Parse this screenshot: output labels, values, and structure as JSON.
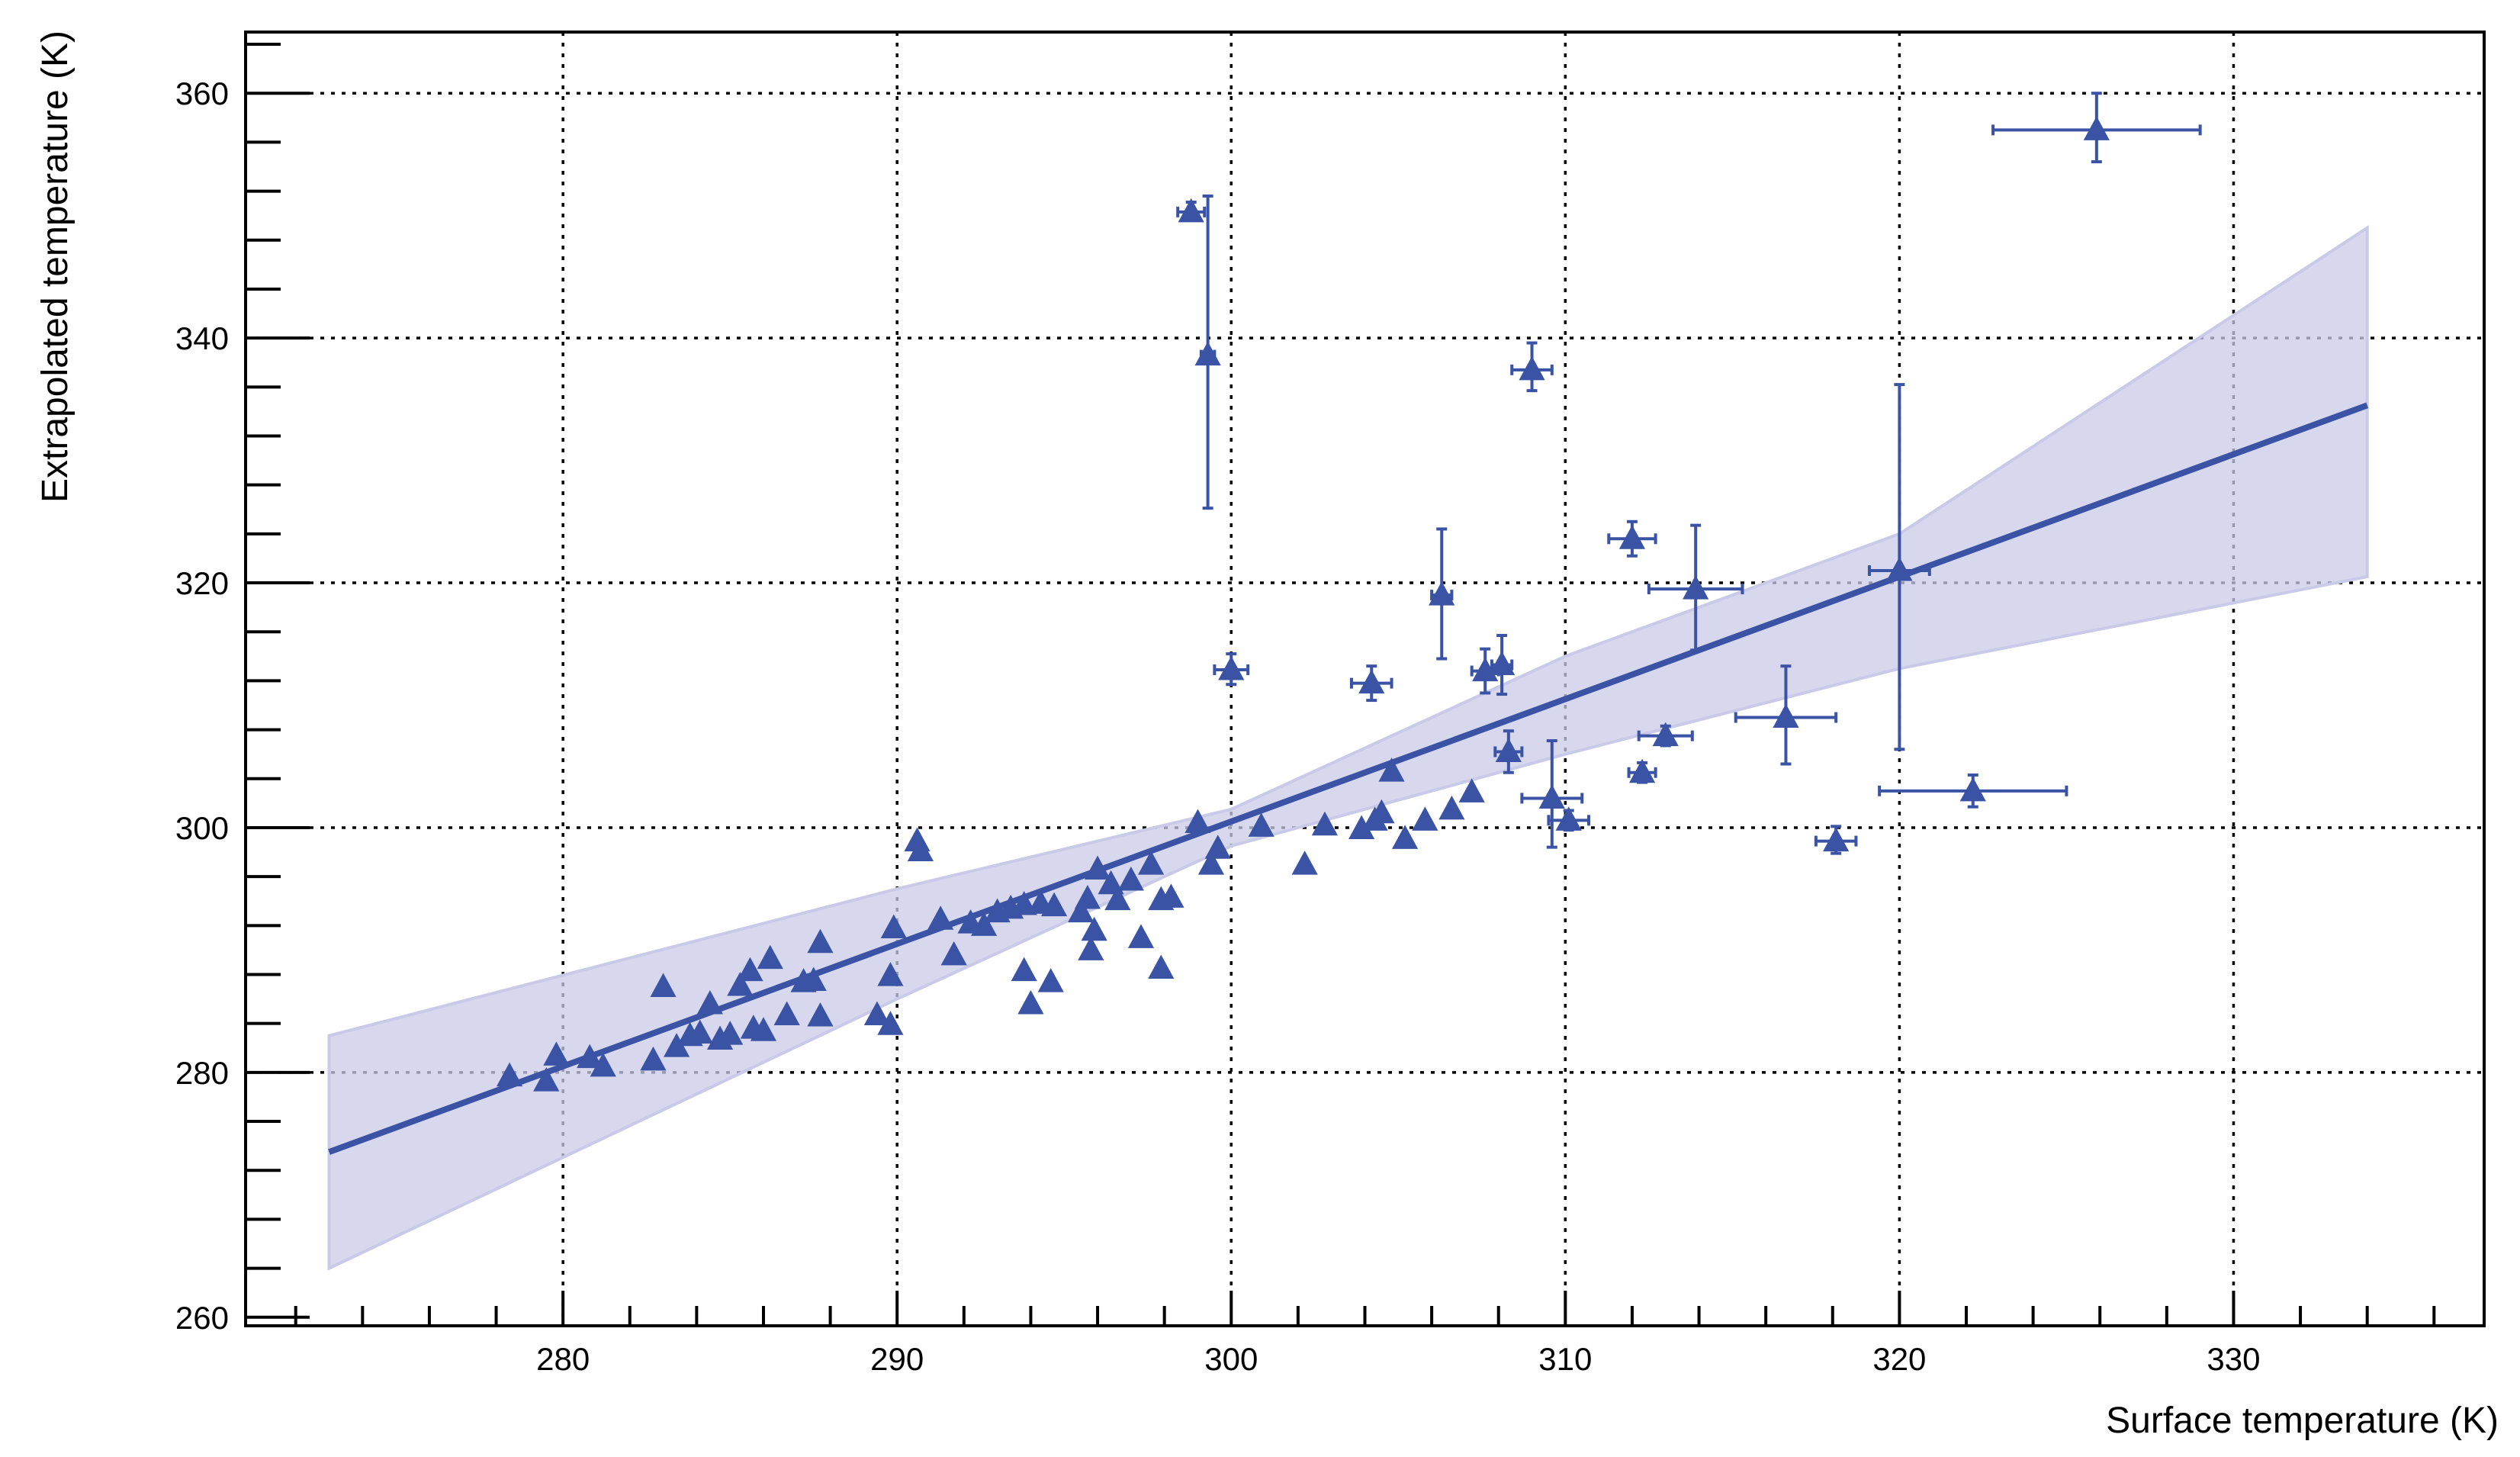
{
  "chart_data": {
    "type": "scatter",
    "xlabel": "Surface temperature (K)",
    "ylabel": "Extrapolated temperature (K)",
    "xlim": [
      270.5,
      337.5
    ],
    "ylim": [
      259.3,
      365
    ],
    "xticks": [
      280,
      290,
      300,
      310,
      320,
      330
    ],
    "yticks": [
      260,
      280,
      300,
      320,
      340,
      360
    ],
    "grid": true,
    "colors": {
      "marker": "#3a53a4",
      "fit_line": "#3a53a4",
      "band": "#c9c9e8"
    },
    "fit": {
      "x": [
        273.0,
        334.0
      ],
      "y": [
        273.5,
        334.5
      ]
    },
    "confidence_band": {
      "x": [
        273.0,
        290.0,
        300.0,
        310.0,
        320.0,
        334.0
      ],
      "lower": [
        264.0,
        286.0,
        298.5,
        306.0,
        313.0,
        320.5
      ],
      "upper": [
        283.0,
        295.0,
        301.5,
        314.0,
        324.0,
        349.0
      ]
    },
    "points": [
      {
        "x": 278.4,
        "y": 279.7
      },
      {
        "x": 279.5,
        "y": 279.3
      },
      {
        "x": 279.8,
        "y": 281.4
      },
      {
        "x": 280.8,
        "y": 281.2
      },
      {
        "x": 281.2,
        "y": 280.5
      },
      {
        "x": 282.7,
        "y": 281.0
      },
      {
        "x": 283.0,
        "y": 287.0
      },
      {
        "x": 283.4,
        "y": 282.1
      },
      {
        "x": 283.8,
        "y": 283.0
      },
      {
        "x": 284.1,
        "y": 283.2
      },
      {
        "x": 284.4,
        "y": 285.6
      },
      {
        "x": 284.7,
        "y": 282.7
      },
      {
        "x": 285.0,
        "y": 283.1
      },
      {
        "x": 285.3,
        "y": 287.1
      },
      {
        "x": 285.6,
        "y": 288.3
      },
      {
        "x": 285.7,
        "y": 283.6
      },
      {
        "x": 286.0,
        "y": 283.4
      },
      {
        "x": 286.2,
        "y": 289.3
      },
      {
        "x": 286.7,
        "y": 284.7
      },
      {
        "x": 287.2,
        "y": 287.4
      },
      {
        "x": 287.5,
        "y": 287.5
      },
      {
        "x": 287.7,
        "y": 284.6
      },
      {
        "x": 287.7,
        "y": 290.6
      },
      {
        "x": 289.4,
        "y": 284.7
      },
      {
        "x": 289.8,
        "y": 287.9
      },
      {
        "x": 289.8,
        "y": 283.9
      },
      {
        "x": 289.9,
        "y": 291.8
      },
      {
        "x": 290.6,
        "y": 298.9
      },
      {
        "x": 290.7,
        "y": 298.1
      },
      {
        "x": 291.3,
        "y": 292.5
      },
      {
        "x": 291.7,
        "y": 289.6
      },
      {
        "x": 292.2,
        "y": 292.2
      },
      {
        "x": 292.6,
        "y": 292.0
      },
      {
        "x": 293.0,
        "y": 293.1
      },
      {
        "x": 293.4,
        "y": 293.4
      },
      {
        "x": 293.8,
        "y": 288.3
      },
      {
        "x": 293.8,
        "y": 293.7
      },
      {
        "x": 294.0,
        "y": 285.6
      },
      {
        "x": 294.3,
        "y": 293.8
      },
      {
        "x": 294.6,
        "y": 287.4
      },
      {
        "x": 294.7,
        "y": 293.6
      },
      {
        "x": 295.5,
        "y": 293.1
      },
      {
        "x": 295.7,
        "y": 294.2
      },
      {
        "x": 295.8,
        "y": 290.0
      },
      {
        "x": 295.9,
        "y": 291.6
      },
      {
        "x": 296.0,
        "y": 296.6
      },
      {
        "x": 296.4,
        "y": 295.4
      },
      {
        "x": 296.6,
        "y": 294.1
      },
      {
        "x": 297.0,
        "y": 295.7
      },
      {
        "x": 297.3,
        "y": 291.0
      },
      {
        "x": 297.6,
        "y": 297.0
      },
      {
        "x": 297.9,
        "y": 294.1
      },
      {
        "x": 297.9,
        "y": 288.5
      },
      {
        "x": 298.2,
        "y": 294.3
      },
      {
        "x": 299.0,
        "y": 300.4
      },
      {
        "x": 299.4,
        "y": 297.0
      },
      {
        "x": 299.6,
        "y": 298.3
      },
      {
        "x": 300.9,
        "y": 300.1
      },
      {
        "x": 302.2,
        "y": 297.0
      },
      {
        "x": 302.8,
        "y": 300.2
      },
      {
        "x": 303.9,
        "y": 299.9
      },
      {
        "x": 304.3,
        "y": 300.6
      },
      {
        "x": 304.5,
        "y": 301.2
      },
      {
        "x": 304.8,
        "y": 304.6
      },
      {
        "x": 305.2,
        "y": 299.1
      },
      {
        "x": 305.8,
        "y": 300.6
      },
      {
        "x": 306.6,
        "y": 301.5
      },
      {
        "x": 307.2,
        "y": 302.9
      }
    ],
    "error_points": [
      {
        "x": 298.8,
        "y": 350.3,
        "xerr": 0.4,
        "yerr_low": 0.6,
        "yerr_high": 0.8
      },
      {
        "x": 299.3,
        "y": 338.6,
        "xerr": 0.2,
        "yerr_low": 12.5,
        "yerr_high": 13.0
      },
      {
        "x": 300.0,
        "y": 312.9,
        "xerr": 0.5,
        "yerr_low": 1.2,
        "yerr_high": 1.3
      },
      {
        "x": 304.2,
        "y": 311.8,
        "xerr": 0.6,
        "yerr_low": 1.4,
        "yerr_high": 1.4
      },
      {
        "x": 306.3,
        "y": 319.0,
        "xerr": 0.3,
        "yerr_low": 5.2,
        "yerr_high": 5.4
      },
      {
        "x": 307.6,
        "y": 312.8,
        "xerr": 0.4,
        "yerr_low": 1.8,
        "yerr_high": 1.8
      },
      {
        "x": 308.1,
        "y": 313.3,
        "xerr": 0.3,
        "yerr_low": 2.4,
        "yerr_high": 2.4
      },
      {
        "x": 308.3,
        "y": 306.2,
        "xerr": 0.4,
        "yerr_low": 1.7,
        "yerr_high": 1.7
      },
      {
        "x": 309.0,
        "y": 337.4,
        "xerr": 0.6,
        "yerr_low": 1.7,
        "yerr_high": 2.2
      },
      {
        "x": 309.6,
        "y": 302.4,
        "xerr": 0.9,
        "yerr_low": 4.0,
        "yerr_high": 4.7
      },
      {
        "x": 310.1,
        "y": 300.6,
        "xerr": 0.6,
        "yerr_low": 0.8,
        "yerr_high": 0.8
      },
      {
        "x": 312.0,
        "y": 323.6,
        "xerr": 0.7,
        "yerr_low": 1.4,
        "yerr_high": 1.4
      },
      {
        "x": 312.3,
        "y": 304.5,
        "xerr": 0.4,
        "yerr_low": 0.8,
        "yerr_high": 0.8
      },
      {
        "x": 313.0,
        "y": 307.5,
        "xerr": 0.8,
        "yerr_low": 0.8,
        "yerr_high": 0.8
      },
      {
        "x": 313.9,
        "y": 319.5,
        "xerr": 1.4,
        "yerr_low": 5.0,
        "yerr_high": 5.2
      },
      {
        "x": 316.6,
        "y": 309.0,
        "xerr": 1.5,
        "yerr_low": 3.8,
        "yerr_high": 4.2
      },
      {
        "x": 318.1,
        "y": 298.9,
        "xerr": 0.6,
        "yerr_low": 1.0,
        "yerr_high": 1.2
      },
      {
        "x": 320.0,
        "y": 321.0,
        "xerr": 0.9,
        "yerr_low": 14.6,
        "yerr_high": 15.2
      },
      {
        "x": 322.2,
        "y": 303.0,
        "xerr": 2.8,
        "yerr_low": 1.3,
        "yerr_high": 1.3
      },
      {
        "x": 325.9,
        "y": 357.0,
        "xerr": 3.1,
        "yerr_low": 2.6,
        "yerr_high": 3.0
      }
    ]
  }
}
